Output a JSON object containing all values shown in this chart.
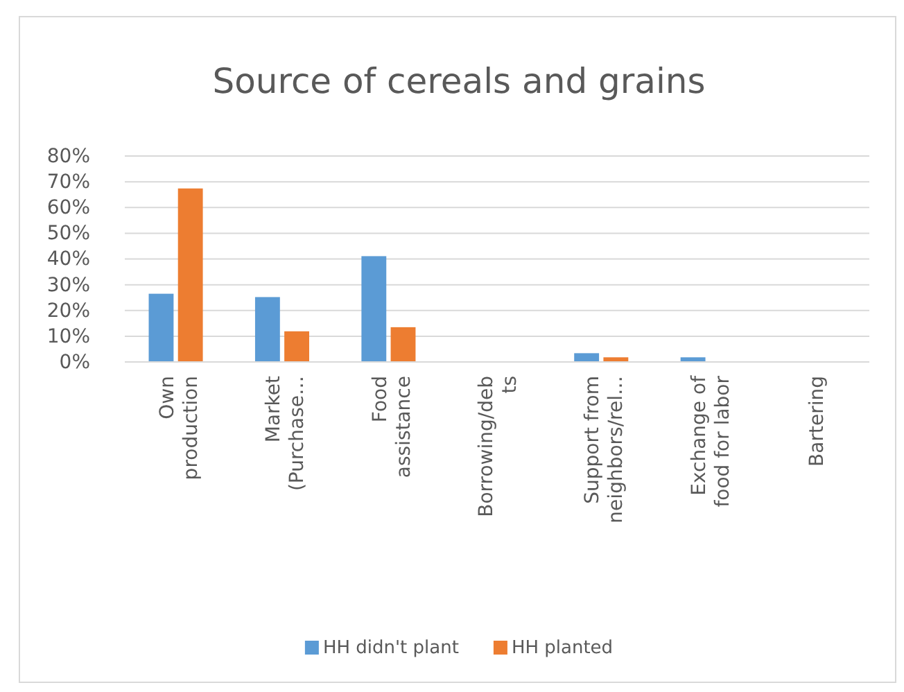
{
  "chart_data": {
    "type": "bar",
    "title": "Source of cereals and grains",
    "categories": [
      "Own\nproduction",
      "Market\n(Purchase…",
      "Food\nassistance",
      "Borrowing/deb\nts",
      "Support from\nneighbors/rel…",
      "Exchange of\nfood for labor",
      "Bartering"
    ],
    "series": [
      {
        "name": "HH didn't plant",
        "color": "#5b9bd5",
        "values": [
          26.5,
          25.2,
          41.1,
          0,
          3.4,
          1.8,
          0
        ]
      },
      {
        "name": "HH planted",
        "color": "#ed7d31",
        "values": [
          67.4,
          11.9,
          13.5,
          0,
          1.8,
          0,
          0
        ]
      }
    ],
    "ylim": [
      0,
      80
    ],
    "yticks": [
      {
        "value": 0,
        "label": "0%"
      },
      {
        "value": 10,
        "label": "10%"
      },
      {
        "value": 20,
        "label": "20%"
      },
      {
        "value": 30,
        "label": "30%"
      },
      {
        "value": 40,
        "label": "40%"
      },
      {
        "value": 50,
        "label": "50%"
      },
      {
        "value": 60,
        "label": "60%"
      },
      {
        "value": 70,
        "label": "70%"
      },
      {
        "value": 80,
        "label": "80%"
      }
    ],
    "grid": "y",
    "legend": "bottom"
  }
}
